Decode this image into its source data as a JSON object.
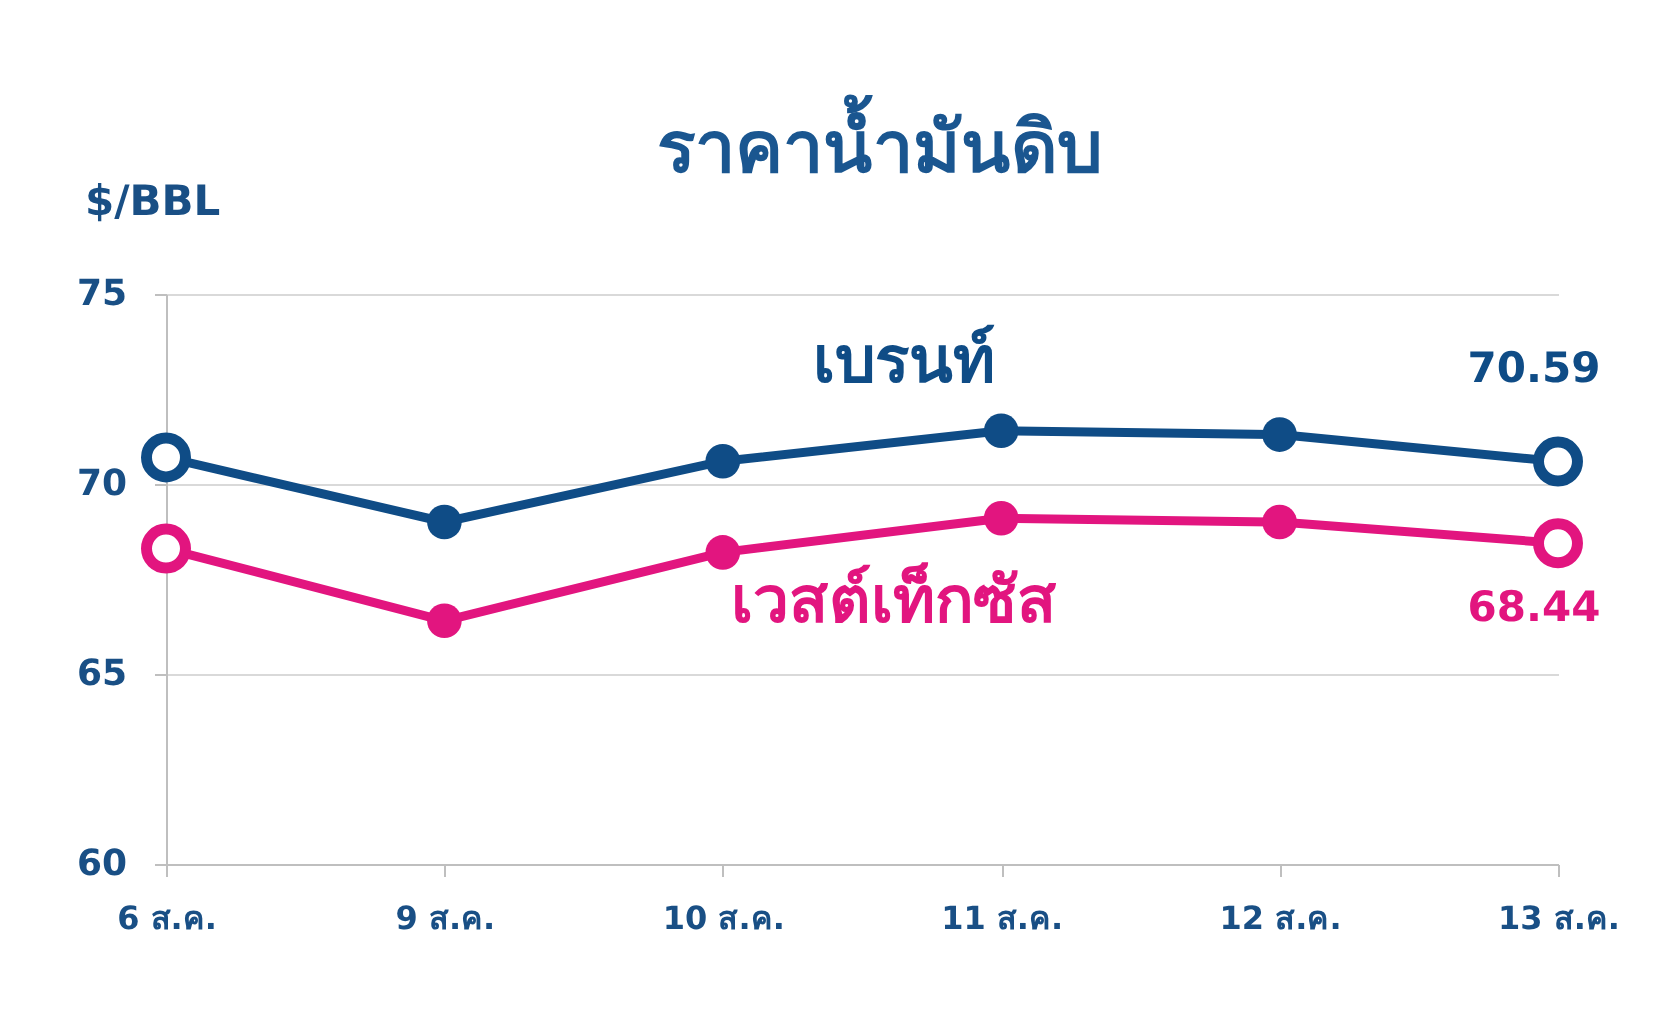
{
  "chart_data": {
    "type": "line",
    "title": "ราคาน้ำมันดิบ",
    "ylabel": "$/BBL",
    "categories": [
      "6 ส.ค.",
      "9 ส.ค.",
      "10 ส.ค.",
      "11 ส.ค.",
      "12 ส.ค.",
      "13 ส.ค."
    ],
    "series": [
      {
        "name": "เบรนท์",
        "color": "#0f4c86",
        "values": [
          70.7,
          69.0,
          70.6,
          71.4,
          71.3,
          70.59
        ],
        "value_labels": [
          null,
          null,
          null,
          null,
          null,
          "70.59"
        ]
      },
      {
        "name": "เวสต์เท็กซัส",
        "color": "#e2157f",
        "values": [
          68.3,
          66.4,
          68.2,
          69.1,
          69.0,
          68.44
        ],
        "value_labels": [
          null,
          null,
          null,
          null,
          null,
          "68.44"
        ]
      }
    ],
    "ylim": [
      60,
      75
    ],
    "yticks": [
      60,
      65,
      70,
      75
    ],
    "grid": "y",
    "legend": false,
    "marker": "circle",
    "line_style": "solid"
  }
}
